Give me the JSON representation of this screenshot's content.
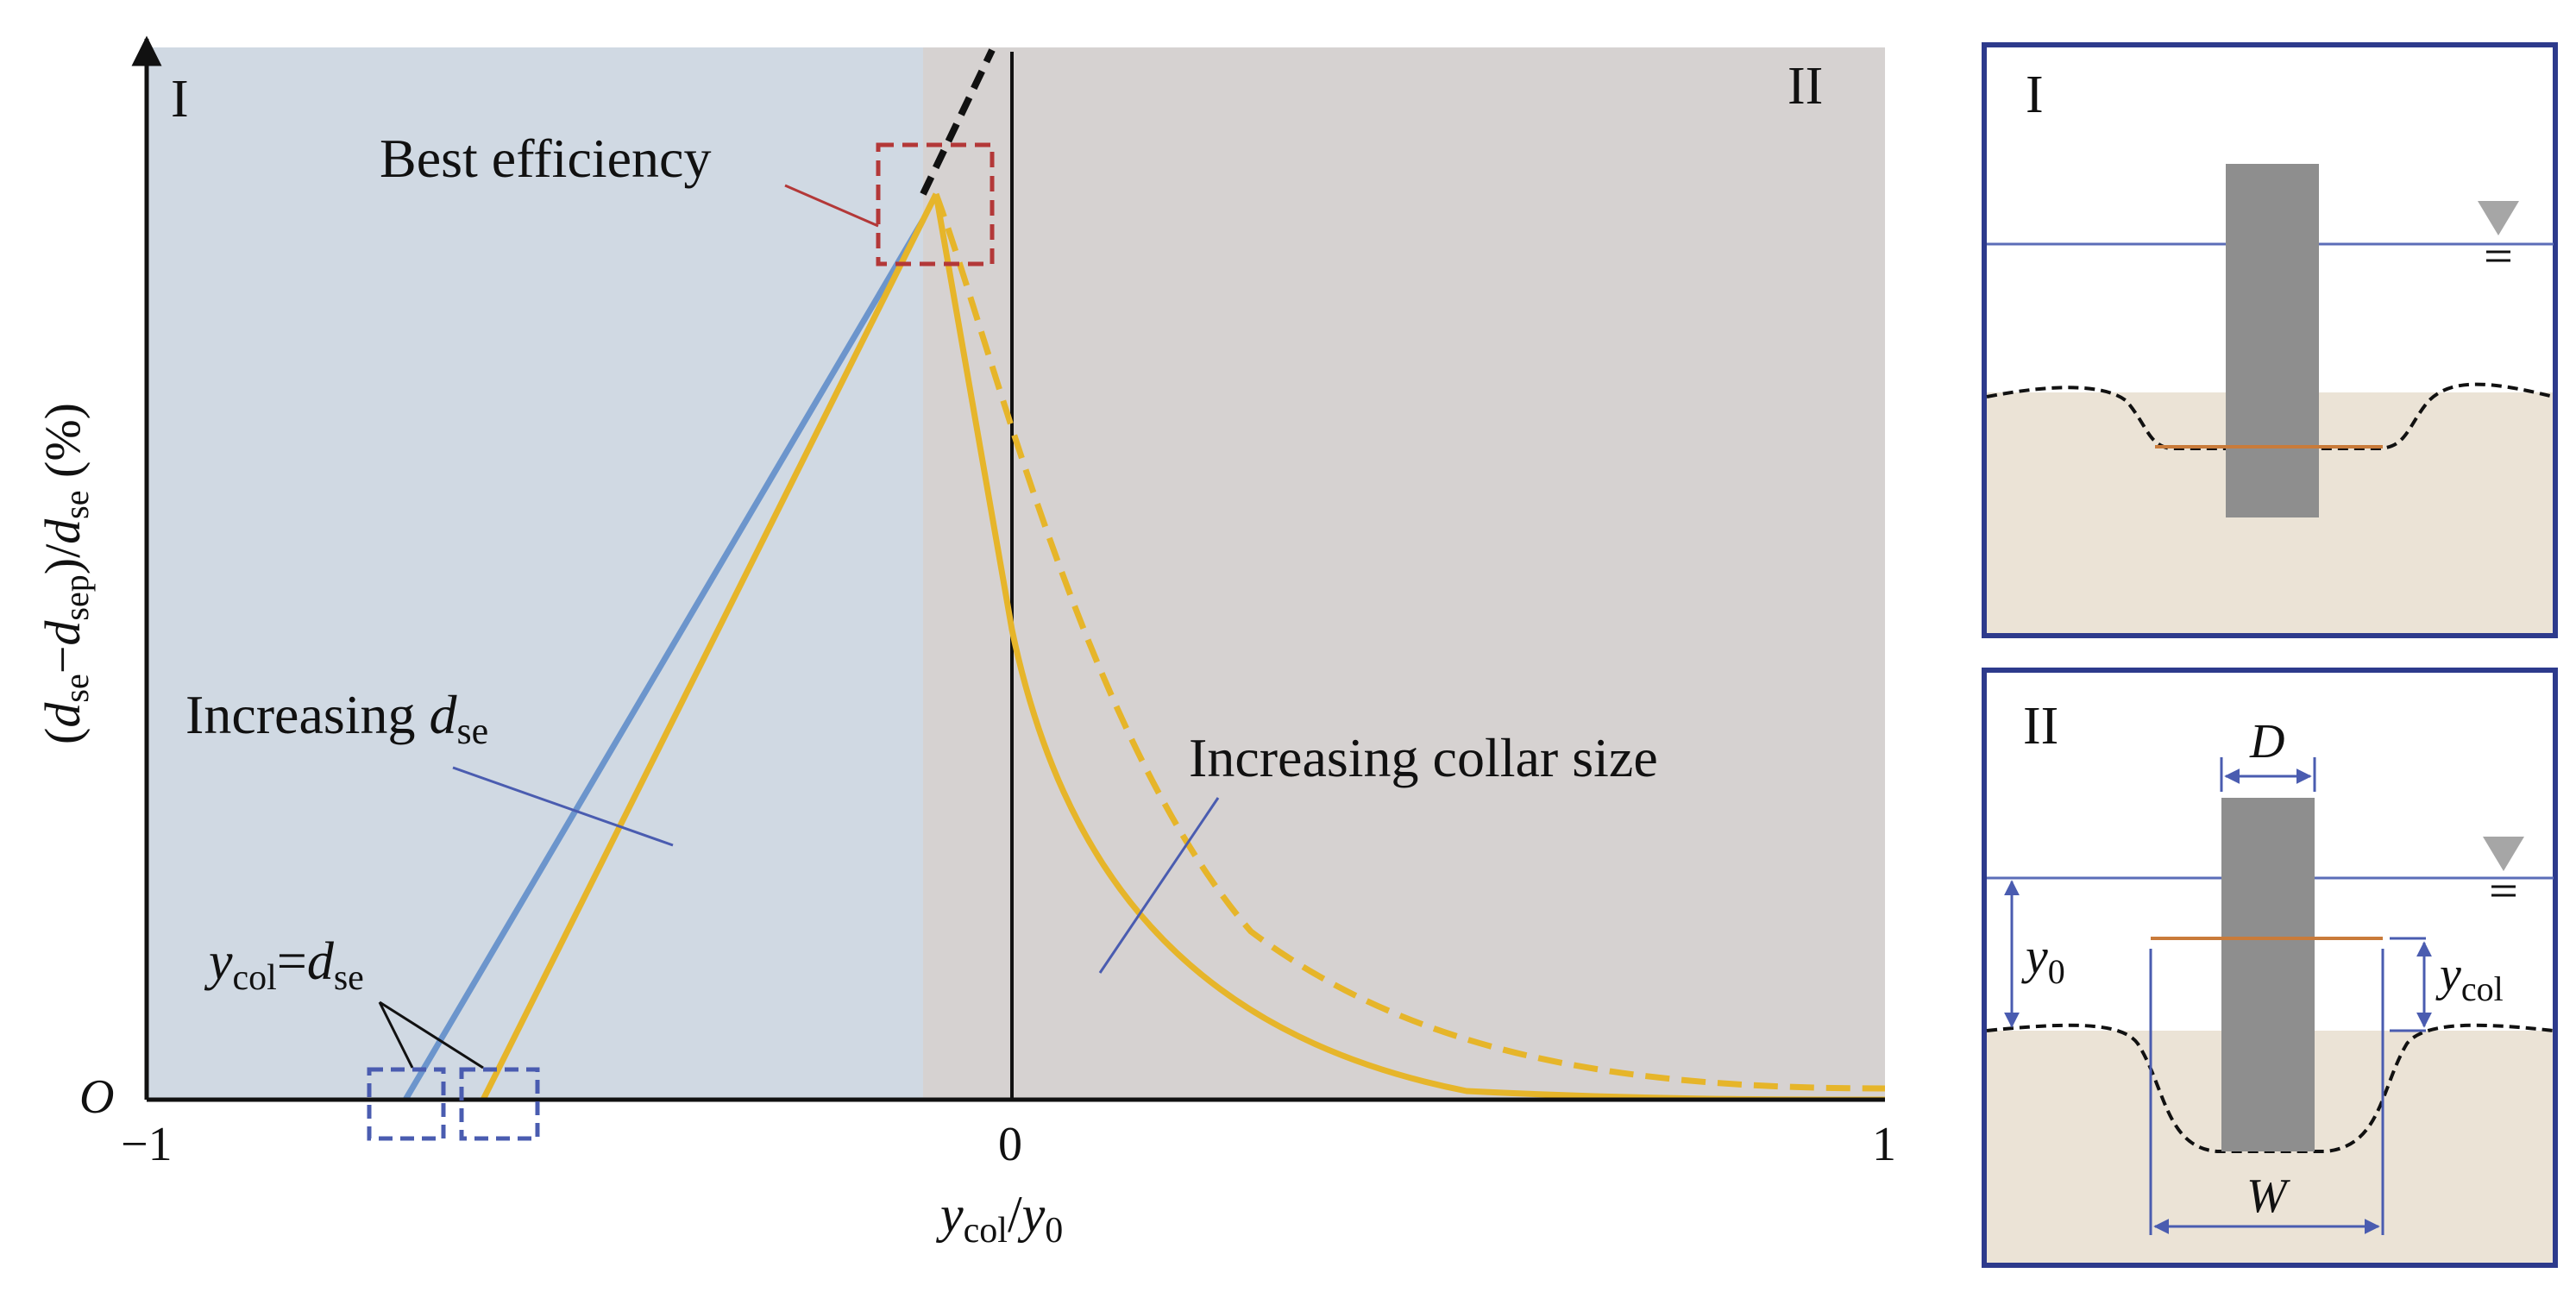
{
  "main_chart": {
    "y_axis_label": {
      "open": "(",
      "d1": "d",
      "d1_sub": "se",
      "minus": "−",
      "d2": "d",
      "d2_sub": "sep",
      "mid": ")/",
      "d3": "d",
      "d3_sub": "se",
      "unit": " (%)"
    },
    "x_axis_label": {
      "y1": "y",
      "y1_sub": "col",
      "slash": "/",
      "y2": "y",
      "y2_sub": "0"
    },
    "x_ticks": [
      "−1",
      "0",
      "1"
    ],
    "origin_label": "O",
    "region_labels": {
      "left": "I",
      "right": "II"
    },
    "annotations": {
      "best_efficiency": "Best efficiency",
      "increasing_dse_prefix": "Increasing ",
      "increasing_dse_d": "d",
      "increasing_dse_sub": "se",
      "increasing_collar": "Increasing collar size",
      "ycol_eq": {
        "y": "y",
        "y_sub": "col",
        "eq": "=",
        "d": "d",
        "d_sub": "se"
      }
    }
  },
  "panel_I": {
    "label": "I"
  },
  "panel_II": {
    "label": "II",
    "dim_D": "D",
    "dim_W": "W",
    "dim_y0": {
      "y": "y",
      "sub": "0"
    },
    "dim_ycol": {
      "y": "y",
      "sub": "col"
    }
  },
  "colors": {
    "region_I_bg": "#d0d9e3",
    "region_II_bg": "#d6d2d1",
    "blue_line": "#6c95cc",
    "yellow_line": "#e6b52a",
    "frame": "#2d3a8c",
    "sediment": "#ebe3d6",
    "pier": "#8e8e8e",
    "collar": "#c97b3a",
    "water_line": "#5b6db8"
  }
}
